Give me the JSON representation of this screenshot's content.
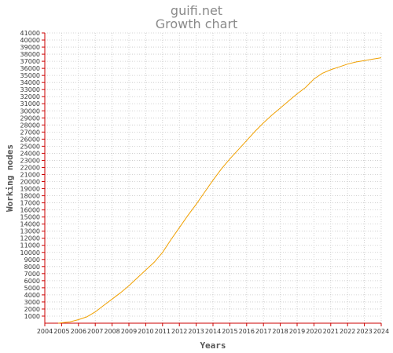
{
  "chart_data": {
    "type": "line",
    "title": "guifi.net",
    "subtitle": "Growth chart",
    "xlabel": "Years",
    "ylabel": "Working nodes",
    "x_ticks": [
      "2004",
      "2005",
      "2006",
      "2007",
      "2008",
      "2009",
      "2010",
      "2011",
      "2012",
      "2013",
      "2014",
      "2015",
      "2016",
      "2017",
      "2018",
      "2019",
      "2020",
      "2021",
      "2022",
      "2023",
      "2024"
    ],
    "ylim": [
      0,
      41000
    ],
    "y_tick_step": 1000,
    "y_tick_start": 1000,
    "grid": true,
    "series": [
      {
        "name": "",
        "color": "#f0a000",
        "x": [
          2004.8,
          2005.0,
          2005.5,
          2006.0,
          2006.5,
          2007.0,
          2007.5,
          2008.0,
          2008.5,
          2009.0,
          2009.5,
          2010.0,
          2010.5,
          2011.0,
          2011.5,
          2012.0,
          2012.5,
          2013.0,
          2013.5,
          2014.0,
          2014.5,
          2015.0,
          2015.5,
          2016.0,
          2016.5,
          2017.0,
          2017.5,
          2018.0,
          2018.5,
          2019.0,
          2019.5,
          2020.0,
          2020.5,
          2021.0,
          2021.5,
          2022.0,
          2022.5,
          2023.0,
          2023.5,
          2024.0
        ],
        "values": [
          0,
          50,
          200,
          500,
          900,
          1600,
          2500,
          3400,
          4300,
          5300,
          6400,
          7500,
          8600,
          10000,
          11800,
          13500,
          15200,
          16800,
          18500,
          20200,
          21800,
          23200,
          24500,
          25800,
          27100,
          28300,
          29400,
          30400,
          31400,
          32400,
          33300,
          34500,
          35300,
          35800,
          36200,
          36600,
          36900,
          37100,
          37300,
          37500
        ]
      }
    ]
  }
}
